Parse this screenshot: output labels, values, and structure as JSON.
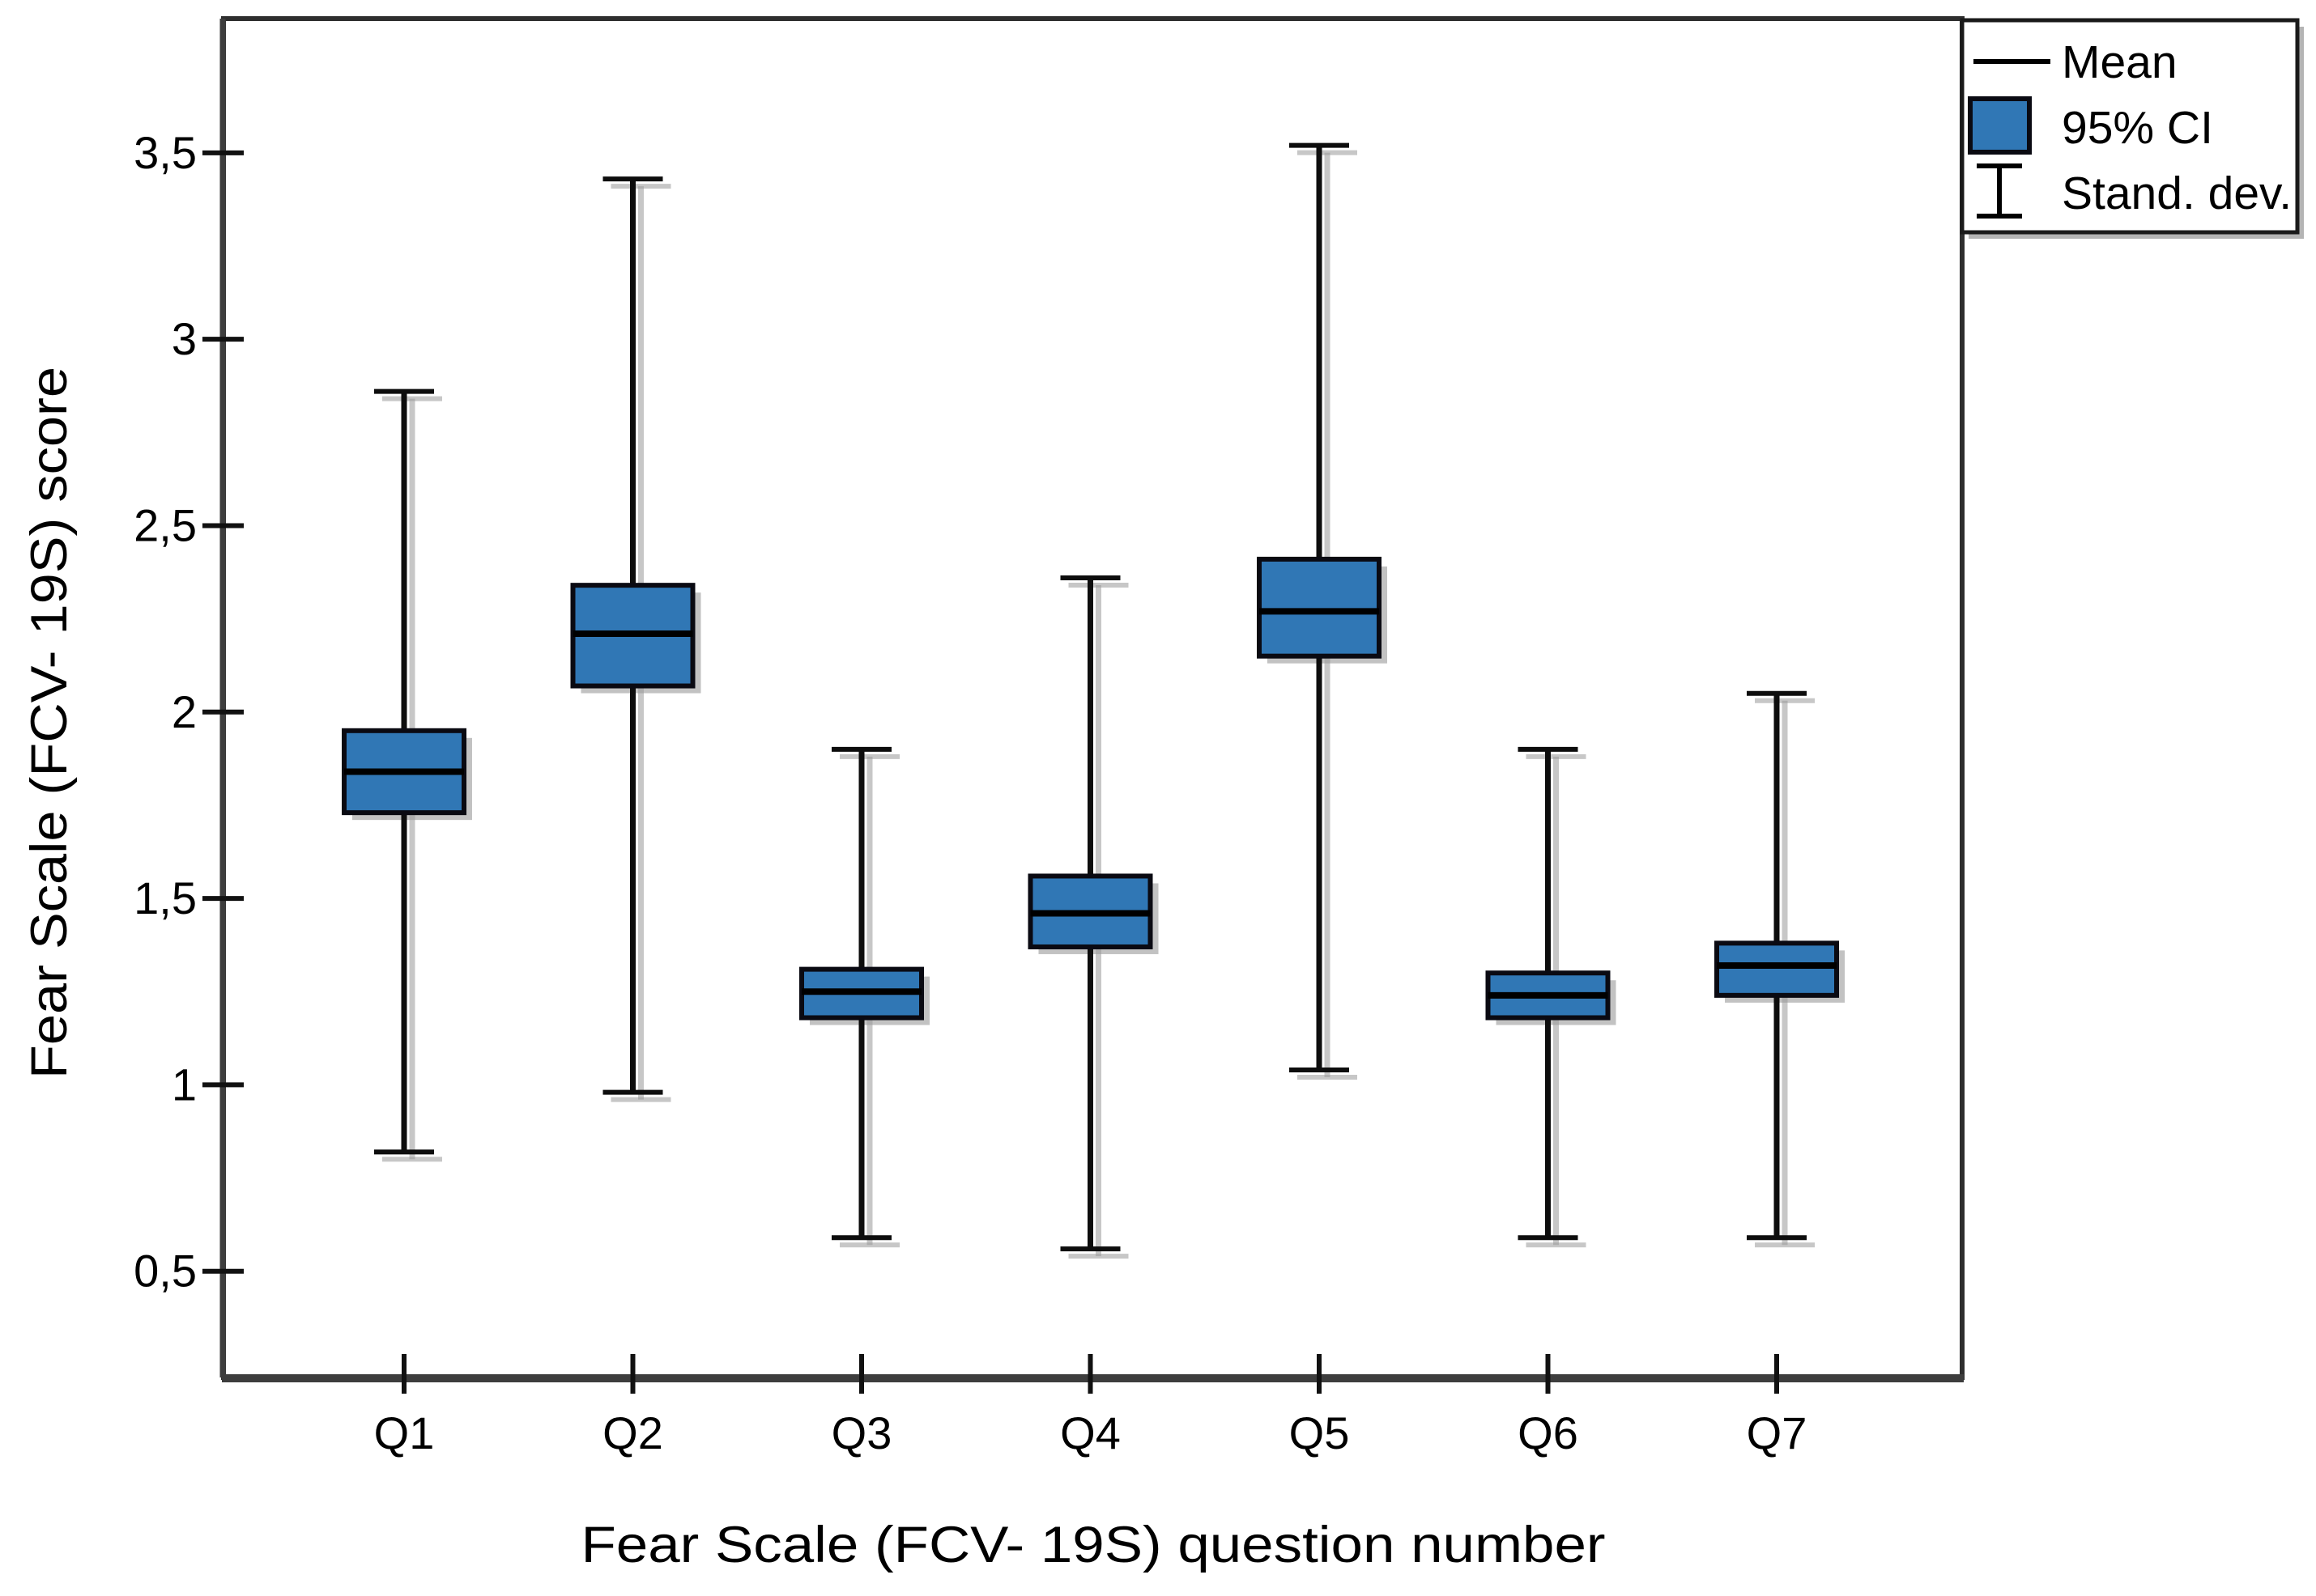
{
  "chart_data": {
    "type": "boxplot",
    "variant": "mean-ci-sd",
    "title": "",
    "xlabel": "Fear Scale (FCV- 19S) question number",
    "ylabel": "Fear Scale (FCV- 19S) score",
    "categories": [
      "Q1",
      "Q2",
      "Q3",
      "Q4",
      "Q5",
      "Q6",
      "Q7"
    ],
    "y_ticks": [
      {
        "value": 3.5,
        "label": "3,5"
      },
      {
        "value": 3.0,
        "label": "3"
      },
      {
        "value": 2.5,
        "label": "2,5"
      },
      {
        "value": 2.0,
        "label": "2"
      },
      {
        "value": 1.5,
        "label": "1,5"
      },
      {
        "value": 1.0,
        "label": "1"
      },
      {
        "value": 0.5,
        "label": "0,5"
      }
    ],
    "ylim": [
      0.215,
      3.86
    ],
    "grid": false,
    "legend_position": "top-right-outside",
    "legend": [
      {
        "symbol": "line",
        "label": "Mean"
      },
      {
        "symbol": "box",
        "label": "95% CI"
      },
      {
        "symbol": "errorbar",
        "label": "Stand. dev."
      }
    ],
    "series": [
      {
        "category": "Q1",
        "mean": 1.84,
        "ci_low": 1.73,
        "ci_high": 1.95,
        "sd_low": 0.82,
        "sd_high": 2.86
      },
      {
        "category": "Q2",
        "mean": 2.21,
        "ci_low": 2.07,
        "ci_high": 2.34,
        "sd_low": 0.98,
        "sd_high": 3.43
      },
      {
        "category": "Q3",
        "mean": 1.25,
        "ci_low": 1.18,
        "ci_high": 1.31,
        "sd_low": 0.59,
        "sd_high": 1.9
      },
      {
        "category": "Q4",
        "mean": 1.46,
        "ci_low": 1.37,
        "ci_high": 1.56,
        "sd_low": 0.56,
        "sd_high": 2.36
      },
      {
        "category": "Q5",
        "mean": 2.27,
        "ci_low": 2.15,
        "ci_high": 2.41,
        "sd_low": 1.04,
        "sd_high": 3.52
      },
      {
        "category": "Q6",
        "mean": 1.24,
        "ci_low": 1.18,
        "ci_high": 1.3,
        "sd_low": 0.59,
        "sd_high": 1.9
      },
      {
        "category": "Q7",
        "mean": 1.32,
        "ci_low": 1.24,
        "ci_high": 1.38,
        "sd_low": 0.59,
        "sd_high": 2.05
      }
    ],
    "colors": {
      "box_fill": "#3077b5",
      "box_border": "#0a0a12",
      "mean_line": "#000000",
      "whisker": "#0d0d0d",
      "axis_frame": "#2e2e2e",
      "axis_bottom": "#3d3d3d",
      "shadow": "#9a9a9a",
      "background": "#ffffff"
    }
  }
}
